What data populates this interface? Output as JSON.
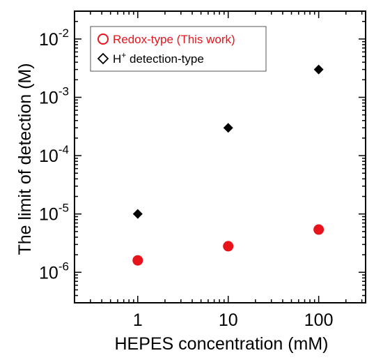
{
  "chart_data": {
    "type": "scatter",
    "xlabel": "HEPES concentration (mM)",
    "ylabel": "The limit of detection (M)",
    "xscale": "log",
    "yscale": "log",
    "xlim": [
      0.2,
      330
    ],
    "ylim": [
      3e-07,
      0.03
    ],
    "x_tick_labels": [
      "1",
      "10",
      "100"
    ],
    "y_tick_labels": [
      {
        "base": "10",
        "exp": "-6"
      },
      {
        "base": "10",
        "exp": "-5"
      },
      {
        "base": "10",
        "exp": "-4"
      },
      {
        "base": "10",
        "exp": "-3"
      },
      {
        "base": "10",
        "exp": "-2"
      }
    ],
    "grid": false,
    "legend_position": "top-left",
    "series": [
      {
        "name": "Redox-type (This work)",
        "marker": "circle",
        "color": "#e8141c",
        "x": [
          1,
          10,
          100
        ],
        "y": [
          1.6e-06,
          2.8e-06,
          5.4e-06
        ]
      },
      {
        "name": "H+ detection-type",
        "marker": "diamond",
        "color": "#000000",
        "x": [
          1,
          10,
          100
        ],
        "y": [
          1e-05,
          0.0003,
          0.003
        ]
      }
    ],
    "legend": {
      "entry0": "Redox-type (This work)",
      "entry1_prefix": "H",
      "entry1_sup": "+",
      "entry1_suffix": " detection-type"
    }
  }
}
